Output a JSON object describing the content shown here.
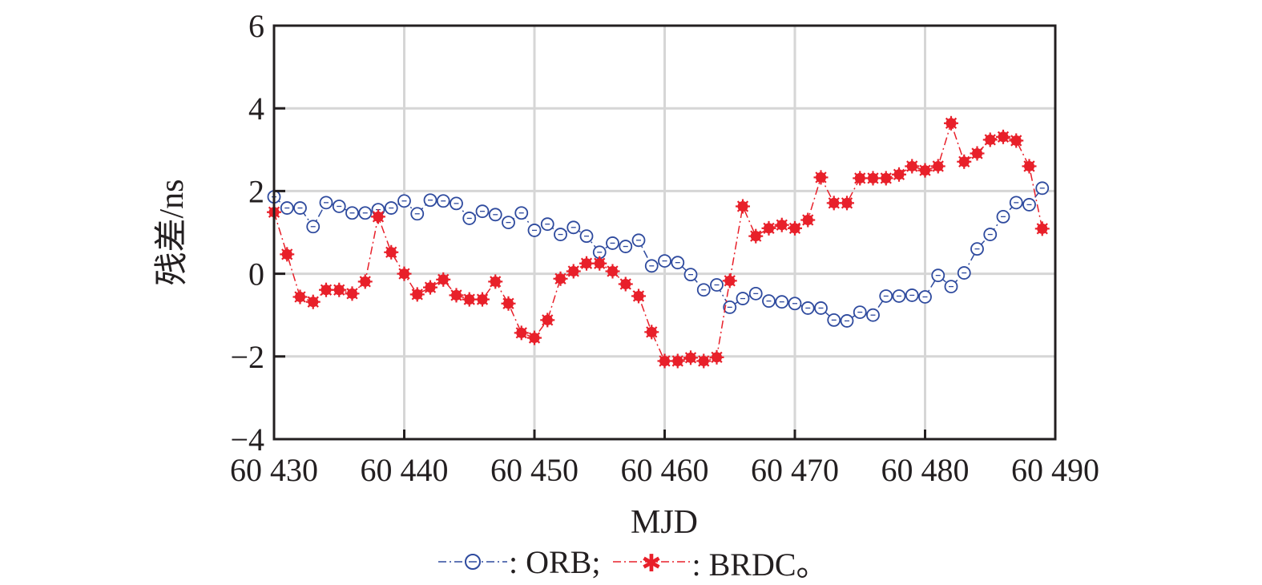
{
  "chart_data": {
    "type": "line",
    "title": "",
    "xlabel": "MJD",
    "ylabel": "残差/ns",
    "xlim": [
      60430,
      60490
    ],
    "ylim": [
      -4,
      6
    ],
    "xticks": [
      60430,
      60440,
      60450,
      60460,
      60470,
      60480,
      60490
    ],
    "xtick_labels": [
      "60 430",
      "60 440",
      "60 450",
      "60 460",
      "60 470",
      "60 480",
      "60 490"
    ],
    "yticks": [
      -4,
      -2,
      0,
      2,
      4,
      6
    ],
    "ytick_labels": [
      "−4",
      "−2",
      "0",
      "2",
      "4",
      "6"
    ],
    "grid": true,
    "legend_position": "bottom",
    "x": [
      60430,
      60431,
      60432,
      60433,
      60434,
      60435,
      60436,
      60437,
      60438,
      60439,
      60440,
      60441,
      60442,
      60443,
      60444,
      60445,
      60446,
      60447,
      60448,
      60449,
      60450,
      60451,
      60452,
      60453,
      60454,
      60455,
      60456,
      60457,
      60458,
      60459,
      60460,
      60461,
      60462,
      60463,
      60464,
      60465,
      60466,
      60467,
      60468,
      60469,
      60470,
      60471,
      60472,
      60473,
      60474,
      60475,
      60476,
      60477,
      60478,
      60479,
      60480,
      60481,
      60482,
      60483,
      60484,
      60485,
      60486,
      60487,
      60488,
      60489
    ],
    "series": [
      {
        "name": "ORB",
        "color": "#2e4a9e",
        "marker": "circle-open",
        "values": [
          1.86,
          1.59,
          1.59,
          1.14,
          1.72,
          1.63,
          1.47,
          1.47,
          1.55,
          1.59,
          1.76,
          1.45,
          1.78,
          1.76,
          1.7,
          1.34,
          1.51,
          1.43,
          1.24,
          1.47,
          1.05,
          1.2,
          0.95,
          1.12,
          0.91,
          0.52,
          0.74,
          0.66,
          0.81,
          0.19,
          0.31,
          0.27,
          -0.02,
          -0.39,
          -0.27,
          -0.81,
          -0.6,
          -0.48,
          -0.66,
          -0.68,
          -0.72,
          -0.83,
          -0.83,
          -1.12,
          -1.14,
          -0.93,
          -1.0,
          -0.54,
          -0.54,
          -0.52,
          -0.56,
          -0.04,
          -0.31,
          0.02,
          0.6,
          0.95,
          1.38,
          1.72,
          1.67,
          2.07
        ]
      },
      {
        "name": "BRDC",
        "color": "#e8202a",
        "marker": "star-filled",
        "values": [
          1.49,
          0.47,
          -0.56,
          -0.68,
          -0.39,
          -0.39,
          -0.48,
          -0.19,
          1.38,
          0.52,
          0.0,
          -0.5,
          -0.33,
          -0.14,
          -0.52,
          -0.62,
          -0.62,
          -0.19,
          -0.72,
          -1.43,
          -1.55,
          -1.12,
          -0.12,
          0.06,
          0.25,
          0.25,
          0.06,
          -0.25,
          -0.54,
          -1.41,
          -2.11,
          -2.11,
          -2.03,
          -2.11,
          -2.02,
          -0.17,
          1.63,
          0.91,
          1.1,
          1.18,
          1.1,
          1.3,
          2.33,
          1.71,
          1.71,
          2.31,
          2.31,
          2.31,
          2.4,
          2.6,
          2.5,
          2.6,
          3.64,
          2.71,
          2.91,
          3.24,
          3.31,
          3.22,
          2.6,
          1.09
        ]
      }
    ]
  },
  "legend": {
    "orb_label": ": ORB;",
    "brdc_label": ": BRDC。"
  }
}
